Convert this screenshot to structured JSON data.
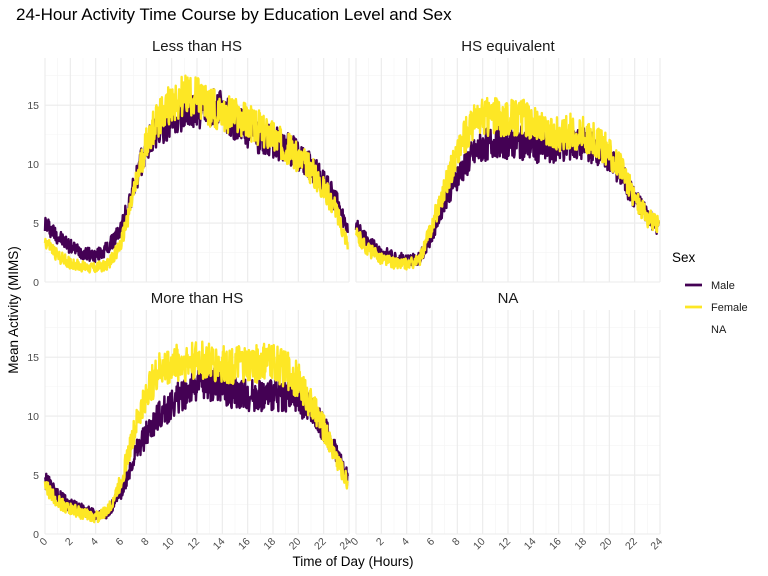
{
  "chart_data": {
    "type": "line",
    "title": "24-Hour Activity Time Course by Education Level and Sex",
    "xlabel": "Time of Day (Hours)",
    "ylabel": "Mean Activity (MIMS)",
    "xlim": [
      0,
      24
    ],
    "ylim": [
      0,
      19
    ],
    "x_ticks": [
      0,
      2,
      4,
      6,
      8,
      10,
      12,
      14,
      16,
      18,
      20,
      22,
      24
    ],
    "y_ticks": [
      0,
      5,
      10,
      15
    ],
    "grid": true,
    "legend": {
      "title": "Sex",
      "position": "right",
      "entries": [
        {
          "label": "Male",
          "color": "#440154"
        },
        {
          "label": "Female",
          "color": "#FDE725"
        },
        {
          "label": "NA",
          "color": ""
        }
      ]
    },
    "panels": [
      {
        "title": "Less than HS",
        "series": [
          {
            "name": "Male",
            "color": "#440154",
            "x": [
              0,
              1,
              2,
              3,
              4,
              5,
              6,
              7,
              8,
              9,
              10,
              11,
              12,
              13,
              14,
              15,
              16,
              17,
              18,
              19,
              20,
              21,
              22,
              23,
              23.9
            ],
            "y": [
              5.0,
              3.9,
              3.0,
              2.5,
              2.2,
              2.9,
              4.5,
              8.0,
              11.5,
              13.0,
              13.8,
              14.2,
              14.5,
              14.8,
              14.6,
              13.5,
              12.8,
              12.3,
              11.9,
              11.4,
              10.8,
              9.8,
              8.5,
              6.8,
              4.6
            ]
          },
          {
            "name": "Female",
            "color": "#FDE725",
            "x": [
              0,
              1,
              2,
              3,
              4,
              5,
              6,
              7,
              8,
              9,
              10,
              11,
              12,
              13,
              14,
              15,
              16,
              17,
              18,
              19,
              20,
              21,
              22,
              23,
              23.9
            ],
            "y": [
              3.5,
              2.2,
              1.6,
              1.3,
              1.2,
              1.5,
              3.2,
              7.5,
              11.8,
              14.0,
              15.2,
              15.8,
              15.6,
              14.8,
              14.5,
              14.0,
              13.5,
              13.0,
              12.4,
              11.5,
              10.5,
              9.5,
              8.0,
              6.0,
              3.3
            ]
          }
        ]
      },
      {
        "title": "HS equivalent",
        "series": [
          {
            "name": "Male",
            "color": "#440154",
            "x": [
              0,
              1,
              2,
              3,
              4,
              5,
              6,
              7,
              8,
              9,
              10,
              11,
              12,
              13,
              14,
              15,
              16,
              17,
              18,
              19,
              20,
              21,
              22,
              23,
              23.9
            ],
            "y": [
              4.7,
              3.3,
              2.5,
              2.1,
              1.9,
              2.0,
              4.0,
              7.0,
              9.0,
              10.5,
              11.5,
              12.0,
              11.8,
              11.8,
              11.5,
              11.3,
              11.5,
              11.6,
              11.7,
              11.3,
              10.5,
              9.0,
              7.0,
              5.8,
              4.5
            ]
          },
          {
            "name": "Female",
            "color": "#FDE725",
            "x": [
              0,
              1,
              2,
              3,
              4,
              5,
              6,
              7,
              8,
              9,
              10,
              11,
              12,
              13,
              14,
              15,
              16,
              17,
              18,
              19,
              20,
              21,
              22,
              23,
              23.9
            ],
            "y": [
              4.0,
              2.7,
              2.0,
              1.6,
              1.5,
              1.8,
              4.8,
              8.0,
              11.0,
              13.2,
              14.0,
              14.0,
              13.8,
              14.0,
              13.5,
              12.5,
              12.5,
              12.8,
              12.5,
              12.0,
              11.0,
              9.5,
              7.2,
              5.5,
              4.8
            ]
          }
        ]
      },
      {
        "title": "More than HS",
        "series": [
          {
            "name": "Male",
            "color": "#440154",
            "x": [
              0,
              1,
              2,
              3,
              4,
              5,
              6,
              7,
              8,
              9,
              10,
              11,
              12,
              13,
              14,
              15,
              16,
              17,
              18,
              19,
              20,
              21,
              22,
              23,
              23.9
            ],
            "y": [
              4.6,
              3.2,
              2.4,
              2.0,
              1.6,
              1.9,
              3.5,
              6.5,
              8.5,
              10.0,
              11.0,
              12.0,
              12.8,
              12.8,
              12.5,
              12.0,
              11.8,
              11.8,
              11.8,
              11.8,
              11.3,
              10.5,
              9.0,
              7.0,
              4.7
            ]
          },
          {
            "name": "Female",
            "color": "#FDE725",
            "x": [
              0,
              1,
              2,
              3,
              4,
              5,
              6,
              7,
              8,
              9,
              10,
              11,
              12,
              13,
              14,
              15,
              16,
              17,
              18,
              19,
              20,
              21,
              22,
              23,
              23.9
            ],
            "y": [
              4.0,
              2.8,
              2.1,
              1.7,
              1.4,
              2.0,
              4.5,
              8.5,
              12.0,
              13.8,
              14.4,
              14.6,
              14.8,
              14.5,
              14.3,
              14.4,
              14.3,
              14.5,
              14.6,
              14.0,
              13.0,
              11.0,
              9.0,
              6.5,
              4.3
            ]
          }
        ]
      },
      {
        "title": "NA",
        "series": []
      }
    ]
  }
}
